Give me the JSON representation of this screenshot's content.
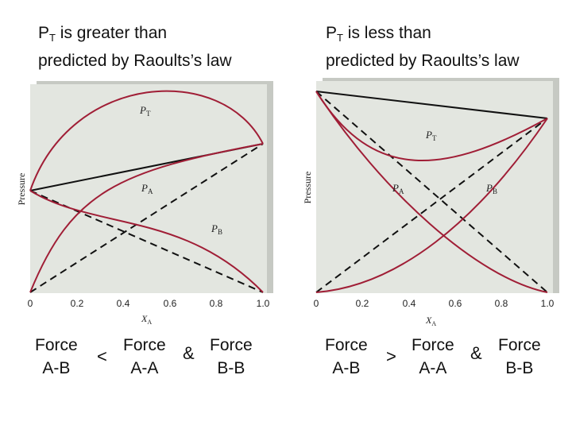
{
  "left": {
    "heading": {
      "p_symbol": "P",
      "p_sub": "T",
      "line1_rest": " is greater than",
      "line2": "predicted by Raoults’s law"
    },
    "ylabel": "Pressure",
    "xlabel_main": "X",
    "xlabel_sub": "A",
    "xticks": [
      "0",
      "0.2",
      "0.4",
      "0.6",
      "0.8",
      "1.0"
    ],
    "curve_labels": {
      "pt": "P",
      "pt_sub": "T",
      "pa": "P",
      "pa_sub": "A",
      "pb": "P",
      "pb_sub": "B"
    },
    "comparison": {
      "force1": "Force",
      "pair1": "A-B",
      "op": "<",
      "force2": "Force",
      "pair2": "A-A",
      "amp": "&",
      "force3": "Force",
      "pair3": "B-B"
    }
  },
  "right": {
    "heading": {
      "p_symbol": "P",
      "p_sub": "T",
      "line1_rest": " is less than",
      "line2": "predicted by Raoults’s law"
    },
    "ylabel": "Pressure",
    "xlabel_main": "X",
    "xlabel_sub": "A",
    "xticks": [
      "0",
      "0.2",
      "0.4",
      "0.6",
      "0.8",
      "1.0"
    ],
    "curve_labels": {
      "pt": "P",
      "pt_sub": "T",
      "pa": "P",
      "pa_sub": "A",
      "pb": "P",
      "pb_sub": "B"
    },
    "comparison": {
      "force1": "Force",
      "pair1": "A-B",
      "op": ">",
      "force2": "Force",
      "pair2": "A-A",
      "amp": "&",
      "force3": "Force",
      "pair3": "B-B"
    }
  },
  "colors": {
    "panel": "#e3e6e0",
    "panel_edge": "#c6c9c3",
    "curve": "#a01e36",
    "ideal": "#111111"
  }
}
